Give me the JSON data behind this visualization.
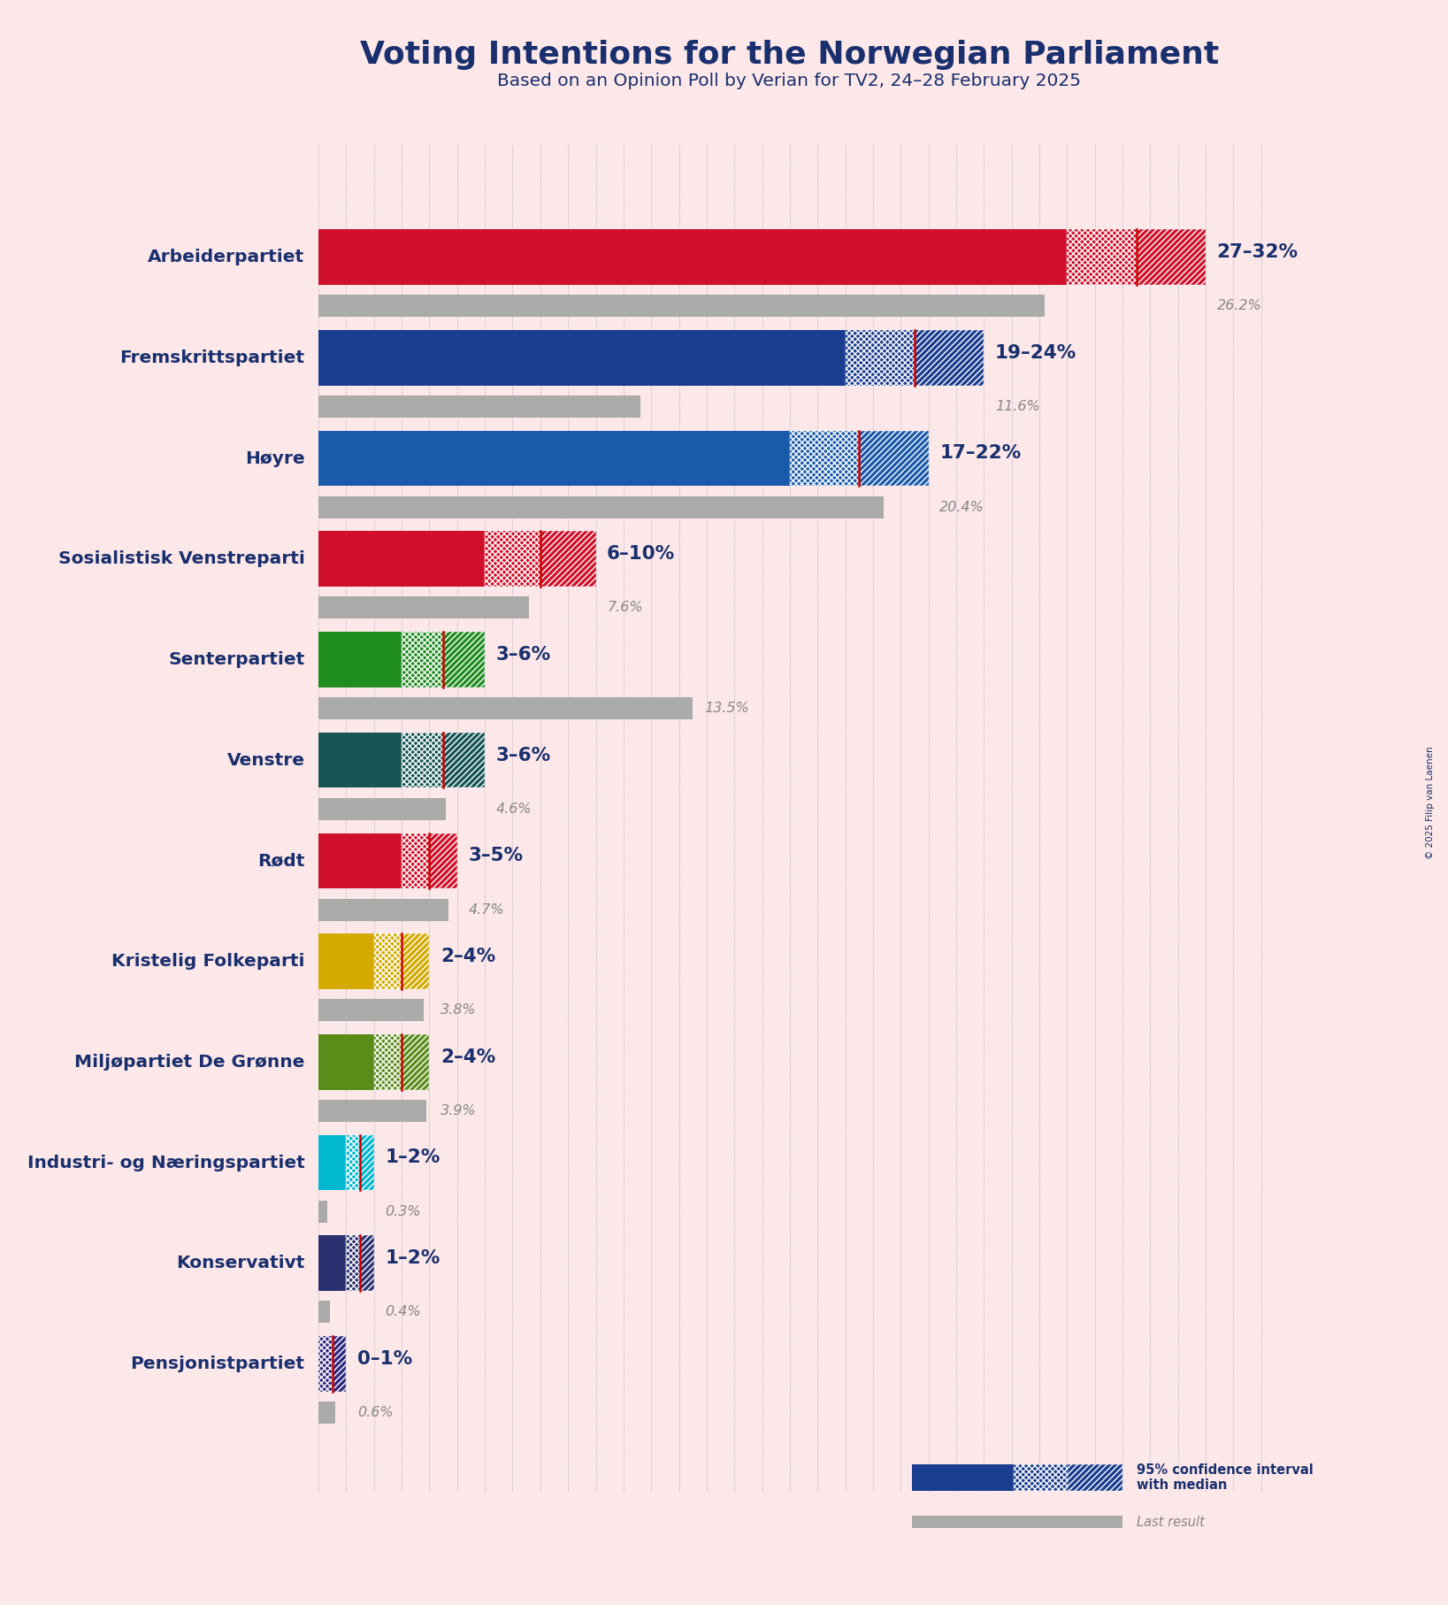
{
  "title": "Voting Intentions for the Norwegian Parliament",
  "subtitle": "Based on an Opinion Poll by Verian for TV2, 24–28 February 2025",
  "copyright": "© 2025 Filip van Laenen",
  "background_color": "#fce8e8",
  "parties": [
    {
      "name": "Arbeiderpartiet",
      "ci_low": 27,
      "ci_high": 32,
      "median": 29.5,
      "last": 26.2,
      "color": "#d0102a",
      "last_color": "#e8a0a8"
    },
    {
      "name": "Fremskrittspartiet",
      "ci_low": 19,
      "ci_high": 24,
      "median": 21.5,
      "last": 11.6,
      "color": "#1a3d8f",
      "last_color": "#8090b8"
    },
    {
      "name": "Høyre",
      "ci_low": 17,
      "ci_high": 22,
      "median": 19.5,
      "last": 20.4,
      "color": "#1a5aaa",
      "last_color": "#8090b8"
    },
    {
      "name": "Sosialistisk Venstreparti",
      "ci_low": 6,
      "ci_high": 10,
      "median": 8.0,
      "last": 7.6,
      "color": "#d0102a",
      "last_color": "#e8a0a8"
    },
    {
      "name": "Senterpartiet",
      "ci_low": 3,
      "ci_high": 6,
      "median": 4.5,
      "last": 13.5,
      "color": "#1e8c1e",
      "last_color": "#90c890"
    },
    {
      "name": "Venstre",
      "ci_low": 3,
      "ci_high": 6,
      "median": 4.5,
      "last": 4.6,
      "color": "#165555",
      "last_color": "#8090a0"
    },
    {
      "name": "Rødt",
      "ci_low": 3,
      "ci_high": 5,
      "median": 4.0,
      "last": 4.7,
      "color": "#d0102a",
      "last_color": "#e8a0a8"
    },
    {
      "name": "Kristelig Folkeparti",
      "ci_low": 2,
      "ci_high": 4,
      "median": 3.0,
      "last": 3.8,
      "color": "#d4aa00",
      "last_color": "#d8d890"
    },
    {
      "name": "Miljøpartiet De Grønne",
      "ci_low": 2,
      "ci_high": 4,
      "median": 3.0,
      "last": 3.9,
      "color": "#5a8c1a",
      "last_color": "#90b870"
    },
    {
      "name": "Industri- og Næringspartiet",
      "ci_low": 1,
      "ci_high": 2,
      "median": 1.5,
      "last": 0.3,
      "color": "#00b8d0",
      "last_color": "#90d8e8"
    },
    {
      "name": "Konservativt",
      "ci_low": 1,
      "ci_high": 2,
      "median": 1.5,
      "last": 0.4,
      "color": "#2a3070",
      "last_color": "#8090b8"
    },
    {
      "name": "Pensjonistpartiet",
      "ci_low": 0,
      "ci_high": 1,
      "median": 0.5,
      "last": 0.6,
      "color": "#302880",
      "last_color": "#9090c0"
    }
  ],
  "xmax": 35,
  "label_color": "#1a2f6e",
  "median_line_color": "#cc0000",
  "grid_color": "#1a2f6e",
  "generic_last_color": "#aaaaaa"
}
